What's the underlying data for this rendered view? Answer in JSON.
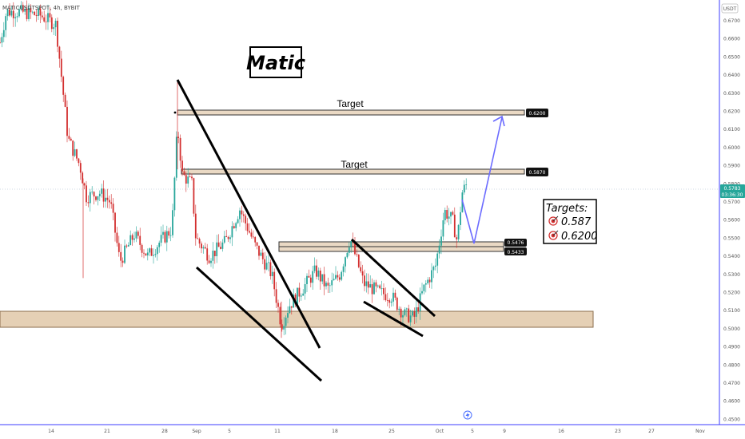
{
  "header": {
    "symbol_label": "MATICUSDTSPOT, 4h, BYBIT"
  },
  "price_axis": {
    "currency": "USDT",
    "ticks": [
      "0.6700",
      "0.6600",
      "0.6500",
      "0.6400",
      "0.6300",
      "0.6200",
      "0.6100",
      "0.6000",
      "0.5900",
      "0.5800",
      "0.5700",
      "0.5600",
      "0.5500",
      "0.5400",
      "0.5300",
      "0.5200",
      "0.5100",
      "0.5000",
      "0.4900",
      "0.4800",
      "0.4700",
      "0.4600",
      "0.4500"
    ],
    "current_price": "0.5783",
    "countdown": "03:36:30"
  },
  "time_axis": {
    "ticks": [
      "14",
      "21",
      "28",
      "Sep",
      "5",
      "11",
      "18",
      "25",
      "Oct",
      "5",
      "9",
      "16",
      "23",
      "27",
      "Nov"
    ]
  },
  "annotations": {
    "title": "Matic",
    "target_label_1": "Target",
    "target_label_2": "Target",
    "tag_6200": "0.6200",
    "tag_5870": "0.5870",
    "tag_5476": "0.5476",
    "tag_5433": "0.5433",
    "targets_heading": "Targets:",
    "targets_line_1": "0.587",
    "targets_line_2": "0.6200"
  },
  "colors": {
    "up_candle": "#26a69a",
    "down_candle": "#d32f2f",
    "zone_fill": "#dcc09c",
    "projection": "#6b6bff",
    "axis_line": "#3c3cff"
  },
  "chart_data": {
    "type": "candlestick",
    "title": "Matic",
    "ylim": [
      0.45,
      0.68
    ],
    "x_tick_labels": [
      "14",
      "21",
      "28",
      "Sep",
      "5",
      "11",
      "18",
      "25",
      "Oct",
      "5",
      "9",
      "16",
      "23",
      "27",
      "Nov"
    ],
    "levels": [
      0.62,
      0.587,
      0.5476,
      0.5433
    ],
    "support_zone": [
      0.5025,
      0.5115
    ],
    "key_points": [
      {
        "t": "Aug 09",
        "price": 0.675
      },
      {
        "t": "Aug 14",
        "price": 0.672
      },
      {
        "t": "Aug 17",
        "price": 0.575
      },
      {
        "t": "Aug 21",
        "price": 0.535
      },
      {
        "t": "Aug 25",
        "price": 0.545
      },
      {
        "t": "Aug 28",
        "price": 0.555
      },
      {
        "t": "Aug 29",
        "price": 0.635
      },
      {
        "t": "Aug 30",
        "price": 0.585
      },
      {
        "t": "Sep 01",
        "price": 0.545
      },
      {
        "t": "Sep 05",
        "price": 0.54
      },
      {
        "t": "Sep 09",
        "price": 0.565
      },
      {
        "t": "Sep 12",
        "price": 0.5
      },
      {
        "t": "Sep 14",
        "price": 0.515
      },
      {
        "t": "Sep 18",
        "price": 0.53
      },
      {
        "t": "Sep 21",
        "price": 0.55
      },
      {
        "t": "Sep 23",
        "price": 0.525
      },
      {
        "t": "Sep 26",
        "price": 0.52
      },
      {
        "t": "Sep 29",
        "price": 0.503
      },
      {
        "t": "Oct 01",
        "price": 0.53
      },
      {
        "t": "Oct 02",
        "price": 0.565
      },
      {
        "t": "Oct 04",
        "price": 0.548
      },
      {
        "t": "Oct 05",
        "price": 0.578
      }
    ],
    "projection": [
      {
        "t": "Oct 05",
        "price": 0.5476
      },
      {
        "t": "Oct 08",
        "price": 0.62
      }
    ]
  }
}
